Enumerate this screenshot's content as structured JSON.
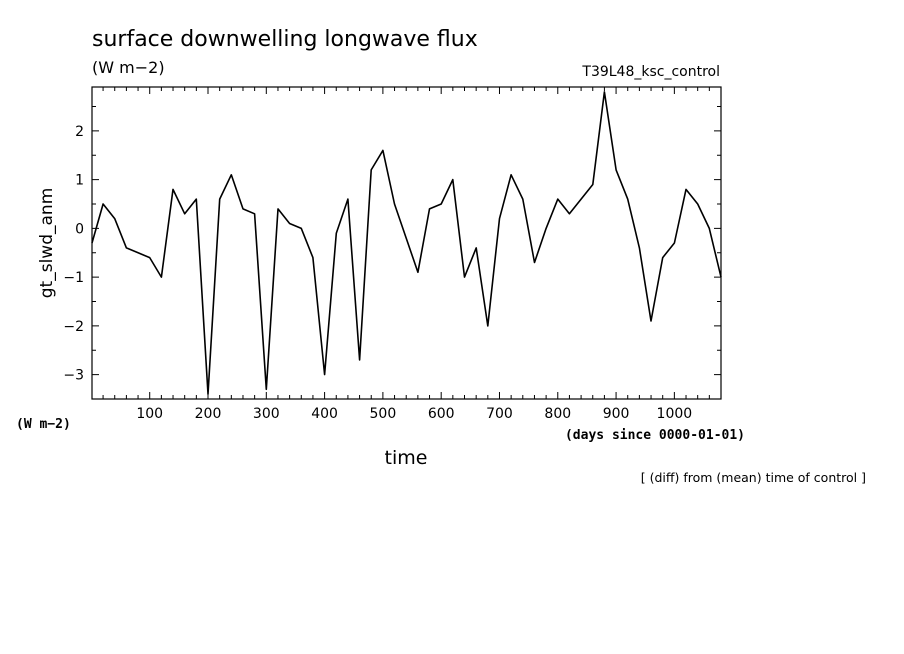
{
  "chart_data": {
    "type": "line",
    "title": "surface downwelling longwave flux",
    "units": "(W m−2)",
    "run_label": "T39L48_ksc_control",
    "ylabel": "gt_slwd_anm",
    "yunits": "(W m−2)",
    "xlabel": "time",
    "xunits": "(days since 0000-01-01)",
    "note": "[ (diff) from (mean) time of control ]",
    "xlim": [
      1,
      1080
    ],
    "ylim": [
      -3.5,
      2.9
    ],
    "xticks": [
      100,
      200,
      300,
      400,
      500,
      600,
      700,
      800,
      900,
      1000
    ],
    "yticks": [
      -3,
      -2,
      -1,
      0,
      1,
      2
    ],
    "grid": false,
    "series": [
      {
        "x": [
          1,
          20,
          40,
          60,
          80,
          100,
          120,
          140,
          160,
          180,
          200,
          220,
          240,
          260,
          280,
          300,
          320,
          340,
          360,
          380,
          400,
          420,
          440,
          460,
          480,
          500,
          520,
          540,
          560,
          580,
          600,
          620,
          640,
          660,
          680,
          700,
          720,
          740,
          760,
          780,
          800,
          820,
          840,
          860,
          880,
          900,
          920,
          940,
          960,
          980,
          1000,
          1020,
          1040,
          1060,
          1080
        ],
        "values": [
          -0.3,
          0.5,
          0.2,
          -0.4,
          -0.5,
          -0.6,
          -1.0,
          0.8,
          0.3,
          0.6,
          -3.4,
          0.6,
          1.1,
          0.4,
          0.3,
          -3.3,
          0.4,
          0.1,
          0.0,
          -0.6,
          -3.0,
          -0.1,
          0.6,
          -2.7,
          1.2,
          1.6,
          0.5,
          -0.2,
          -0.9,
          0.4,
          0.5,
          1.0,
          -1.0,
          -0.4,
          -2.0,
          0.2,
          1.1,
          0.6,
          -0.7,
          0.0,
          0.6,
          0.3,
          0.6,
          0.9,
          2.8,
          1.2,
          0.6,
          -0.4,
          -1.9,
          -0.6,
          -0.3,
          0.8,
          0.5,
          0.0,
          -1.0
        ]
      }
    ]
  }
}
